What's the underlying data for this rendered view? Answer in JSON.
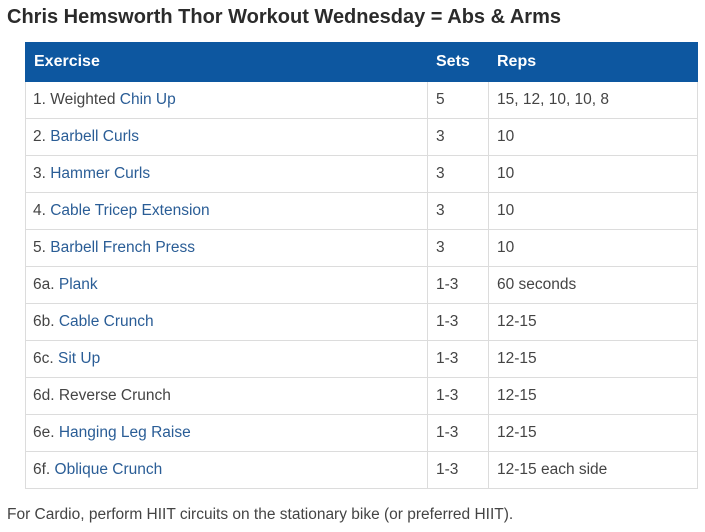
{
  "title": "Chris Hemsworth Thor Workout Wednesday = Abs & Arms",
  "table": {
    "headers": [
      "Exercise",
      "Sets",
      "Reps"
    ],
    "rows": [
      {
        "prefix": "1. Weighted ",
        "link": "Chin Up",
        "sets": "5",
        "reps": "15, 12, 10, 10, 8"
      },
      {
        "prefix": "2. ",
        "link": "Barbell Curls",
        "sets": "3",
        "reps": "10"
      },
      {
        "prefix": "3. ",
        "link": "Hammer Curls",
        "sets": "3",
        "reps": "10"
      },
      {
        "prefix": "4. ",
        "link": "Cable Tricep Extension",
        "sets": "3",
        "reps": "10"
      },
      {
        "prefix": "5. ",
        "link": "Barbell French Press",
        "sets": "3",
        "reps": "10"
      },
      {
        "prefix": "6a. ",
        "link": "Plank",
        "sets": "1-3",
        "reps": "60 seconds"
      },
      {
        "prefix": "6b. ",
        "link": "Cable Crunch",
        "sets": "1-3",
        "reps": "12-15"
      },
      {
        "prefix": "6c. ",
        "link": "Sit Up",
        "sets": "1-3",
        "reps": "12-15"
      },
      {
        "prefix": "6d. Reverse Crunch",
        "link": "",
        "sets": "1-3",
        "reps": "12-15"
      },
      {
        "prefix": "6e. ",
        "link": "Hanging Leg Raise",
        "sets": "1-3",
        "reps": "12-15"
      },
      {
        "prefix": "6f. ",
        "link": "Oblique Crunch",
        "sets": "1-3",
        "reps": "12-15 each side"
      }
    ]
  },
  "footer": "For Cardio, perform HIIT circuits on the stationary bike (or preferred HIIT).",
  "colors": {
    "header_bg": "#0d57a0",
    "link": "#2a5d96",
    "border": "#dcdcdc"
  }
}
